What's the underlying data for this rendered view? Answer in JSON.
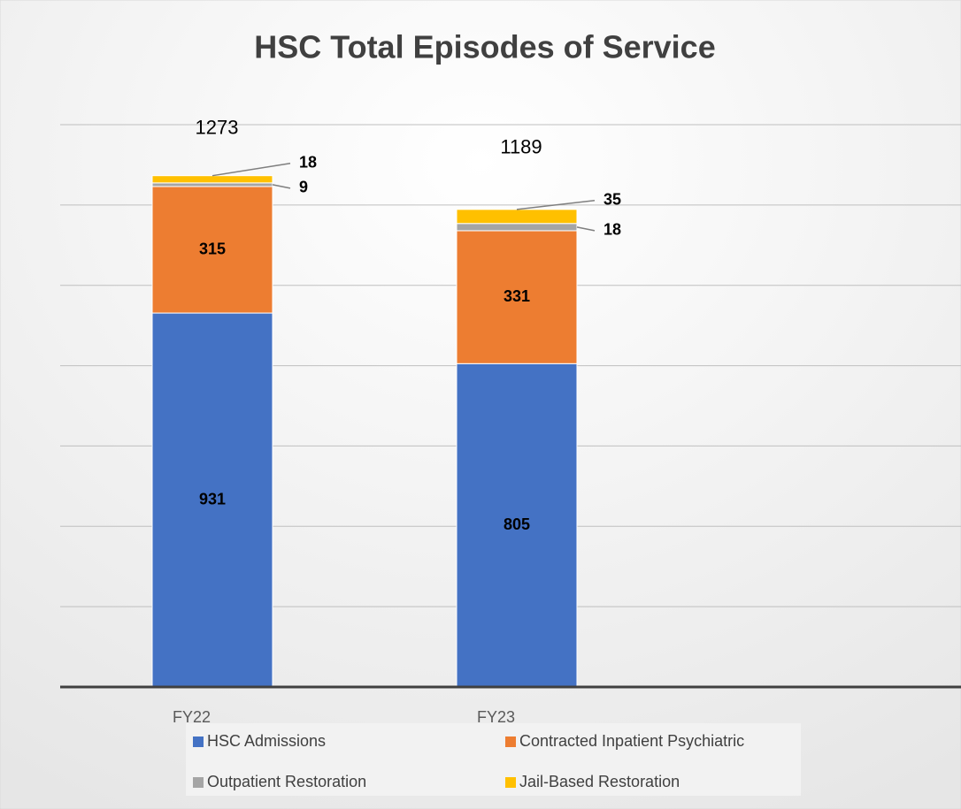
{
  "chart_data": {
    "type": "stacked_bar",
    "title": "HSC Total Episodes of Service",
    "categories": [
      "FY22",
      "FY23"
    ],
    "series": [
      {
        "name": "HSC Admissions",
        "color": "#4472c4",
        "values": [
          931,
          805
        ]
      },
      {
        "name": "Contracted Inpatient Psychiatric",
        "color": "#ed7d31",
        "values": [
          315,
          331
        ]
      },
      {
        "name": "Outpatient Restoration",
        "color": "#a5a5a5",
        "values": [
          9,
          18
        ]
      },
      {
        "name": "Jail-Based Restoration",
        "color": "#ffc000",
        "values": [
          18,
          35
        ]
      }
    ],
    "totals": [
      1273,
      1189
    ],
    "ylim": [
      0,
      1400
    ],
    "yticks": [
      0,
      200,
      400,
      600,
      800,
      1000,
      1200,
      1400
    ],
    "grid": true
  }
}
